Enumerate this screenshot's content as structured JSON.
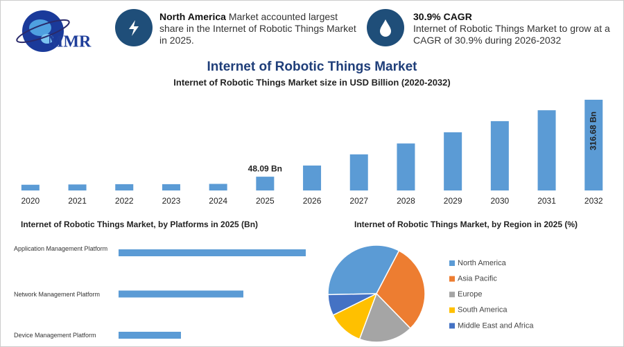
{
  "header": {
    "logo": "MMR",
    "highlights": [
      {
        "title": "North America",
        "text": "Market accounted largest share in the Internet of Robotic Things Market in 2025."
      },
      {
        "title": "30.9% CAGR",
        "text": "Internet of Robotic Things Market to grow at a CAGR of 30.9% during 2026-2032"
      }
    ]
  },
  "title": "Internet of Robotic Things Market",
  "chart_data": [
    {
      "type": "bar",
      "title": "Internet of Robotic Things Market size in USD Billion (2020-2032)",
      "categories": [
        "2020",
        "2021",
        "2022",
        "2023",
        "2024",
        "2025",
        "2026",
        "2027",
        "2028",
        "2029",
        "2030",
        "2031",
        "2032"
      ],
      "values": [
        20,
        21,
        22,
        22,
        23,
        48.09,
        87,
        126,
        164,
        203,
        242,
        280,
        316.68
      ],
      "value_labels": [
        null,
        null,
        null,
        null,
        null,
        "48.09 Bn",
        null,
        null,
        null,
        null,
        null,
        null,
        "316.68 Bn"
      ],
      "color": "#5b9bd5"
    },
    {
      "type": "hbar",
      "title": "Internet of Robotic Things Market, by Platforms in 2025 (Bn)",
      "categories": [
        "Application Management Platform",
        "Network Management Platform",
        "Device Management Platform"
      ],
      "values": [
        24,
        16,
        8
      ],
      "color": "#5b9bd5"
    },
    {
      "type": "pie",
      "title": "Internet of Robotic Things Market, by Region in 2025 (%)",
      "categories": [
        "North America",
        "Asia Pacific",
        "Europe",
        "South America",
        "Middle East and Africa"
      ],
      "values": [
        33,
        30,
        18,
        12,
        7
      ],
      "colors": [
        "#5b9bd5",
        "#ed7d31",
        "#a5a5a5",
        "#ffc000",
        "#4472c4"
      ],
      "legend": "right"
    }
  ]
}
